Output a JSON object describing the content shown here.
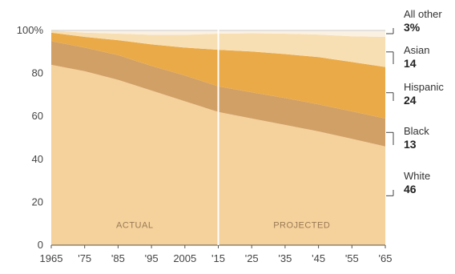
{
  "chart_data": {
    "type": "area",
    "stacked": true,
    "x": [
      1965,
      1975,
      1985,
      1995,
      2005,
      2015,
      2025,
      2035,
      2045,
      2055,
      2065
    ],
    "x_tick_labels": [
      "1965",
      "'75",
      "'85",
      "'95",
      "2005",
      "'15",
      "'25",
      "'35",
      "'45",
      "'55",
      "'65"
    ],
    "y_tick_labels": [
      "100%",
      "80",
      "60",
      "40",
      "20",
      "0"
    ],
    "y_ticks": [
      100,
      80,
      60,
      40,
      20,
      0
    ],
    "ylim": [
      0,
      100
    ],
    "xlim": [
      1965,
      2065
    ],
    "divider_x": 2015,
    "regions": [
      {
        "label": "ACTUAL",
        "center_x": 1990
      },
      {
        "label": "PROJECTED",
        "center_x": 2040
      }
    ],
    "series": [
      {
        "name": "White",
        "label_value": "46",
        "color": "#f5d19c",
        "values": [
          84,
          81,
          77,
          72,
          67,
          62,
          59,
          56,
          53,
          49.5,
          46
        ]
      },
      {
        "name": "Black",
        "label_value": "13",
        "color": "#d1a066",
        "values": [
          11,
          11,
          11.5,
          11.5,
          12,
          12,
          12.2,
          12.5,
          12.6,
          12.8,
          13
        ]
      },
      {
        "name": "Hispanic",
        "label_value": "24",
        "color": "#eaaa48",
        "values": [
          4,
          5,
          7,
          10,
          13,
          17,
          19,
          20.5,
          22,
          23,
          24
        ]
      },
      {
        "name": "Asian",
        "label_value": "14",
        "color": "#f8dfb3",
        "values": [
          1,
          2,
          3,
          4.5,
          6,
          7.5,
          8.5,
          9.5,
          10.5,
          12,
          14
        ]
      },
      {
        "name": "All other",
        "label_value": "3%",
        "color": "#fbf1e2",
        "values": [
          0,
          1,
          1.5,
          2,
          2,
          1.5,
          1.3,
          1.5,
          1.9,
          2.7,
          3
        ]
      }
    ]
  }
}
